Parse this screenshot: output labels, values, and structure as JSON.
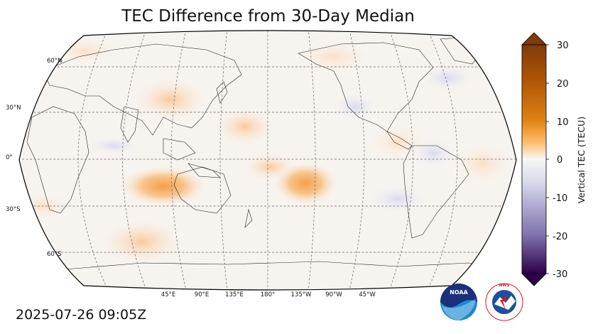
{
  "title": "TEC Difference from 30-Day Median",
  "timestamp": "2025-07-26 09:05Z",
  "map": {
    "projection": "Robinson",
    "central_longitude": 180,
    "lat_labels": [
      "60°N",
      "30°N",
      "0°",
      "30°S",
      "60°S"
    ],
    "lon_labels": [
      "45°E",
      "90°E",
      "135°E",
      "180°",
      "135°W",
      "90°W",
      "45°W"
    ]
  },
  "colorbar": {
    "label": "Vertical TEC (TECU)",
    "ticks": [
      "30",
      "20",
      "10",
      "0",
      "-10",
      "-20",
      "-30"
    ],
    "range": [
      -30,
      30
    ],
    "colors": {
      "max": "#7f3b08",
      "high": "#e08214",
      "mid_high": "#fdb863",
      "zero": "#f7f7f7",
      "mid_low": "#b2abd2",
      "low": "#8073ac",
      "min": "#2d004b"
    }
  },
  "logos": {
    "noaa_text": "NOAA",
    "nws_text": "NATIONAL WEATHER SERVICE"
  }
}
